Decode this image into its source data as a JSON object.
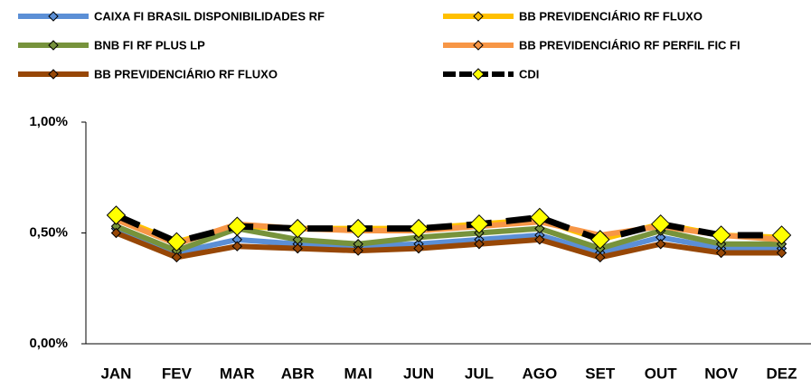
{
  "chart_data": {
    "type": "line",
    "categories": [
      "JAN",
      "FEV",
      "MAR",
      "ABR",
      "MAI",
      "JUN",
      "JUL",
      "AGO",
      "SET",
      "OUT",
      "NOV",
      "DEZ"
    ],
    "ylim": [
      0,
      1
    ],
    "yticks": [
      {
        "value": 0,
        "label": "0,00%"
      },
      {
        "value": 0.5,
        "label": "0,50%"
      },
      {
        "value": 1,
        "label": "1,00%"
      }
    ],
    "legend": "top",
    "series": [
      {
        "name": "CAIXA FI BRASIL DISPONIBILIDADES RF",
        "color": "#5b8fd6",
        "values": [
          0.52,
          0.41,
          0.47,
          0.45,
          0.44,
          0.45,
          0.47,
          0.49,
          0.41,
          0.48,
          0.43,
          0.43
        ]
      },
      {
        "name": "BB PREVIDENCIÁRIO RF FLUXO",
        "color": "#ffc000",
        "values": [
          0.57,
          0.46,
          0.53,
          0.52,
          0.52,
          0.52,
          0.54,
          0.56,
          0.47,
          0.54,
          0.49,
          0.48
        ]
      },
      {
        "name": "BNB FI RF PLUS LP",
        "color": "#77933c",
        "values": [
          0.53,
          0.42,
          0.52,
          0.47,
          0.45,
          0.48,
          0.5,
          0.52,
          0.43,
          0.51,
          0.45,
          0.45
        ]
      },
      {
        "name": "BB PREVIDENCIÁRIO RF PERFIL FIC FI",
        "color": "#f79646",
        "values": [
          0.56,
          0.45,
          0.54,
          0.52,
          0.51,
          0.51,
          0.53,
          0.55,
          0.49,
          0.53,
          0.49,
          0.47
        ]
      },
      {
        "name": "BB PREVIDENCIÁRIO RF FLUXO",
        "color": "#974706",
        "values": [
          0.5,
          0.39,
          0.44,
          0.43,
          0.42,
          0.43,
          0.45,
          0.47,
          0.39,
          0.45,
          0.41,
          0.41
        ]
      },
      {
        "name": "CDI",
        "color": "#000000",
        "marker_color": "#ffff00",
        "dashed": true,
        "values": [
          0.58,
          0.46,
          0.53,
          0.52,
          0.52,
          0.52,
          0.54,
          0.57,
          0.47,
          0.54,
          0.49,
          0.49
        ]
      }
    ]
  }
}
